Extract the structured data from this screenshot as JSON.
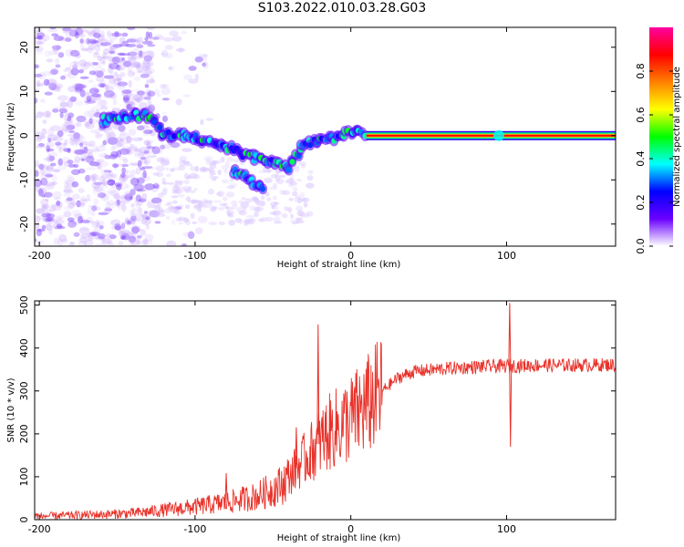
{
  "figure": {
    "title": "S103.2022.010.03.28.G03"
  },
  "chart_data": [
    {
      "type": "heatmap",
      "xlabel": "Height of straight line (km)",
      "ylabel": "Frequency (Hz)",
      "xlim": [
        -203,
        170
      ],
      "ylim": [
        -25,
        24.5
      ],
      "xticks": [
        -200,
        -100,
        0,
        100
      ],
      "yticks": [
        -20,
        -10,
        0,
        10,
        20
      ],
      "grid": false,
      "colorbar": {
        "label": "Normalized spectral amplitude",
        "range": [
          0,
          1
        ],
        "ticks": [
          0.0,
          0.2,
          0.4,
          0.6,
          0.8
        ],
        "tick_labels": [
          "0.0",
          "0.2",
          "0.4",
          "0.6",
          "0.8"
        ],
        "colors": [
          "#ffffff",
          "#6a00ff",
          "#0000ff",
          "#00ffff",
          "#00ff00",
          "#ffff00",
          "#ff8000",
          "#ff0000",
          "#ff00a0"
        ]
      },
      "ridge": [
        {
          "x": -160,
          "y": 3.5
        },
        {
          "x": -140,
          "y": 4.5
        },
        {
          "x": -130,
          "y": 4.5
        },
        {
          "x": -120,
          "y": 0
        },
        {
          "x": -105,
          "y": 0
        },
        {
          "x": -90,
          "y": -1.5
        },
        {
          "x": -80,
          "y": -2.5
        },
        {
          "x": -70,
          "y": -4
        },
        {
          "x": -60,
          "y": -5
        },
        {
          "x": -50,
          "y": -6
        },
        {
          "x": -40,
          "y": -7
        },
        {
          "x": -30,
          "y": -2
        },
        {
          "x": -15,
          "y": -1
        },
        {
          "x": 0,
          "y": 1
        },
        {
          "x": 10,
          "y": 0
        },
        {
          "x": 50,
          "y": 0
        },
        {
          "x": 95,
          "y": 0.5
        },
        {
          "x": 170,
          "y": 0
        }
      ],
      "secondary_ridge": [
        {
          "x": -75,
          "y": -8
        },
        {
          "x": -65,
          "y": -10
        },
        {
          "x": -55,
          "y": -12.5
        }
      ]
    },
    {
      "type": "line",
      "xlabel": "Height of straight line (km)",
      "ylabel": "SNR (10 * v/v)",
      "xlim": [
        -203,
        170
      ],
      "ylim": [
        0,
        510
      ],
      "xticks": [
        -200,
        -100,
        0,
        100
      ],
      "yticks": [
        0,
        100,
        200,
        300,
        400,
        500
      ],
      "grid": false,
      "series": [
        {
          "color": "#e8322a",
          "points": [
            {
              "x": -203,
              "y": 8
            },
            {
              "x": -180,
              "y": 10
            },
            {
              "x": -160,
              "y": 12
            },
            {
              "x": -140,
              "y": 15
            },
            {
              "x": -120,
              "y": 22
            },
            {
              "x": -100,
              "y": 30
            },
            {
              "x": -80,
              "y": 40
            },
            {
              "x": -60,
              "y": 55
            },
            {
              "x": -45,
              "y": 80
            },
            {
              "x": -35,
              "y": 120
            },
            {
              "x": -25,
              "y": 160
            },
            {
              "x": -15,
              "y": 200
            },
            {
              "x": 0,
              "y": 235
            },
            {
              "x": 10,
              "y": 265
            },
            {
              "x": 20,
              "y": 300
            },
            {
              "x": 30,
              "y": 330
            },
            {
              "x": 40,
              "y": 345
            },
            {
              "x": 60,
              "y": 352
            },
            {
              "x": 80,
              "y": 356
            },
            {
              "x": 100,
              "y": 358
            },
            {
              "x": 120,
              "y": 360
            },
            {
              "x": 140,
              "y": 360
            },
            {
              "x": 170,
              "y": 361
            }
          ],
          "spikes": [
            {
              "x": -21,
              "y": 455
            },
            {
              "x": -35,
              "y": 215
            },
            {
              "x": -80,
              "y": 108
            },
            {
              "x": 102,
              "y": 505
            },
            {
              "x": 102.5,
              "y": 170
            }
          ]
        }
      ]
    }
  ]
}
